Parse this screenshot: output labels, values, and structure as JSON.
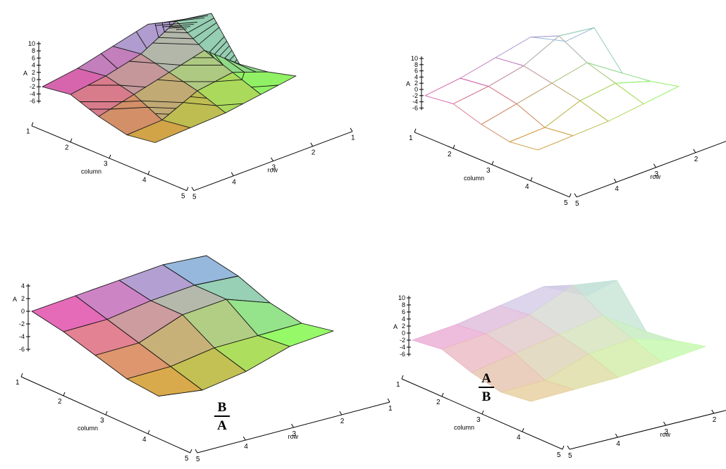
{
  "chart_data": [
    {
      "type": "surface3d",
      "render": "shaded-contour",
      "zlabel": "A",
      "xlabel": "column",
      "ylabel": "row",
      "x_ticks": [
        1,
        2,
        3,
        4,
        5
      ],
      "y_ticks": [
        1,
        2,
        3,
        4,
        5
      ],
      "zlim": [
        -7,
        10
      ],
      "z_ticks": [
        10,
        8,
        6,
        4,
        2,
        0,
        -2,
        -4,
        -6
      ],
      "grid": [
        [
          -2,
          0,
          3,
          6,
          1
        ],
        [
          -1,
          1,
          4,
          10,
          9
        ],
        [
          -4,
          -1,
          2,
          5,
          -2
        ],
        [
          -6,
          -5,
          0,
          2,
          -1
        ],
        [
          -5,
          -4,
          -3,
          -1,
          1
        ]
      ]
    },
    {
      "type": "surface3d",
      "render": "wireframe",
      "zlabel": "A",
      "xlabel": "column",
      "ylabel": "row",
      "x_ticks": [
        1,
        2,
        3,
        4,
        5
      ],
      "y_ticks": [
        1,
        2,
        3,
        4,
        5
      ],
      "zlim": [
        -7,
        10
      ],
      "z_ticks": [
        10,
        8,
        6,
        4,
        2,
        0,
        -2,
        -4,
        -6
      ],
      "grid": [
        [
          -2,
          0,
          3,
          6,
          1
        ],
        [
          -1,
          1,
          4,
          10,
          9
        ],
        [
          -4,
          -1,
          2,
          5,
          -2
        ],
        [
          -6,
          -5,
          0,
          2,
          -1
        ],
        [
          -5,
          -4,
          -3,
          -1,
          1
        ]
      ]
    },
    {
      "type": "surface3d",
      "render": "patch",
      "zlabel": "A",
      "xlabel": "column",
      "ylabel": "row",
      "x_ticks": [
        1,
        2,
        3,
        4,
        5
      ],
      "y_ticks": [
        1,
        2,
        3,
        4,
        5
      ],
      "zlim": [
        -7,
        4
      ],
      "z_ticks": [
        4,
        2,
        0,
        -2,
        -4,
        -6
      ],
      "grid": [
        [
          0,
          1,
          2,
          3,
          3
        ],
        [
          -1,
          -0.5,
          1,
          2,
          2
        ],
        [
          -2.5,
          -2,
          1,
          2,
          0
        ],
        [
          -4,
          -3.5,
          -2,
          -1.5,
          -1
        ],
        [
          -4.5,
          -5,
          -3.5,
          -1,
          0
        ]
      ],
      "annotation": {
        "numerator": "B",
        "denominator": "A"
      }
    },
    {
      "type": "surface3d",
      "render": "patch-transparent",
      "zlabel": "A",
      "xlabel": "column",
      "ylabel": "row",
      "x_ticks": [
        1,
        2,
        3,
        4,
        5
      ],
      "y_ticks": [
        1,
        2,
        3,
        4,
        5
      ],
      "zlim": [
        -7,
        10
      ],
      "z_ticks": [
        10,
        8,
        6,
        4,
        2,
        0,
        -2,
        -4,
        -6
      ],
      "grid": [
        [
          -2,
          0,
          3,
          6,
          1
        ],
        [
          -1,
          1,
          4,
          10,
          9
        ],
        [
          -4,
          -1,
          2,
          5,
          -2
        ],
        [
          -6,
          -5,
          0,
          2,
          -1
        ],
        [
          -5,
          -4,
          -3,
          -1,
          1
        ]
      ],
      "annotation": {
        "numerator": "A",
        "denominator": "B"
      }
    }
  ]
}
